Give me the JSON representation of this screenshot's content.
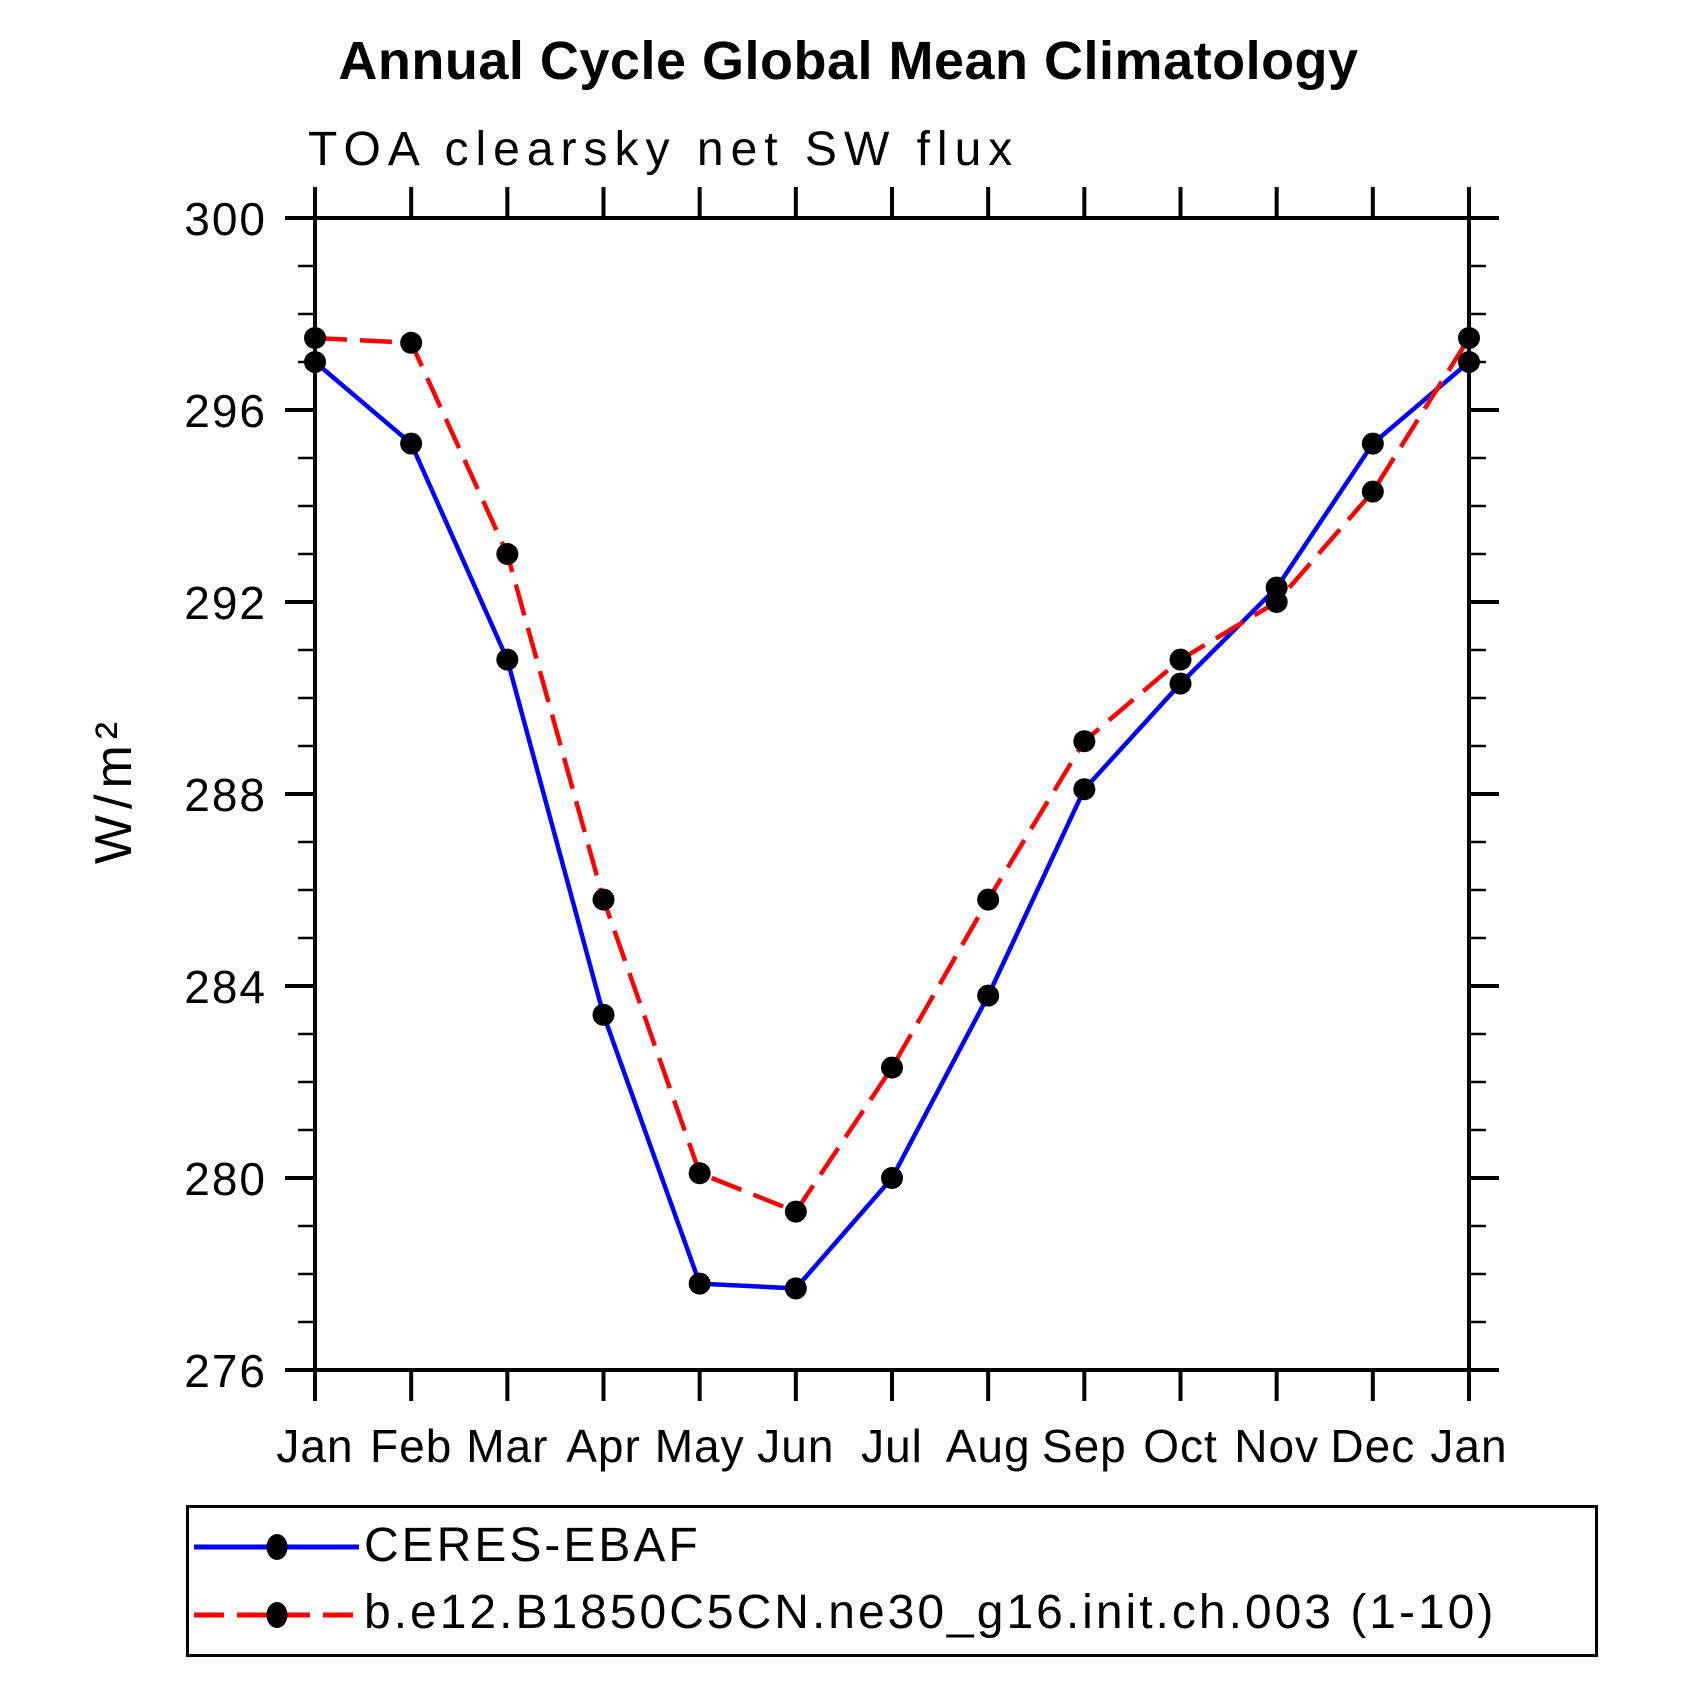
{
  "chart_data": {
    "type": "line",
    "title": "Annual Cycle Global Mean Climatology",
    "subtitle": "TOA clearsky net SW flux",
    "ylabel": "W/m²",
    "xlabel": "",
    "categories": [
      "Jan",
      "Feb",
      "Mar",
      "Apr",
      "May",
      "Jun",
      "Jul",
      "Aug",
      "Sep",
      "Oct",
      "Nov",
      "Dec",
      "Jan"
    ],
    "ylim": [
      276,
      300
    ],
    "ytick_major": [
      276,
      280,
      284,
      288,
      292,
      296,
      300
    ],
    "ytick_minor_step": 1,
    "grid": false,
    "legend_position": "bottom-left-box",
    "axis_color": "#000000",
    "marker_color": "#000000",
    "series": [
      {
        "name": "CERES-EBAF",
        "color": "#0000ff",
        "style": "solid",
        "marker": "circle",
        "values": [
          297.0,
          295.3,
          290.8,
          283.4,
          277.8,
          277.7,
          280.0,
          283.8,
          288.1,
          290.3,
          292.3,
          295.3,
          297.0
        ]
      },
      {
        "name": "b.e12.B1850C5CN.ne30_g16.init.ch.003 (1-10)",
        "color": "#ff0000",
        "style": "dashed",
        "marker": "circle",
        "values": [
          297.5,
          297.4,
          293.0,
          285.8,
          280.1,
          279.3,
          282.3,
          285.8,
          289.1,
          290.8,
          292.0,
          294.3,
          297.5
        ]
      }
    ]
  }
}
